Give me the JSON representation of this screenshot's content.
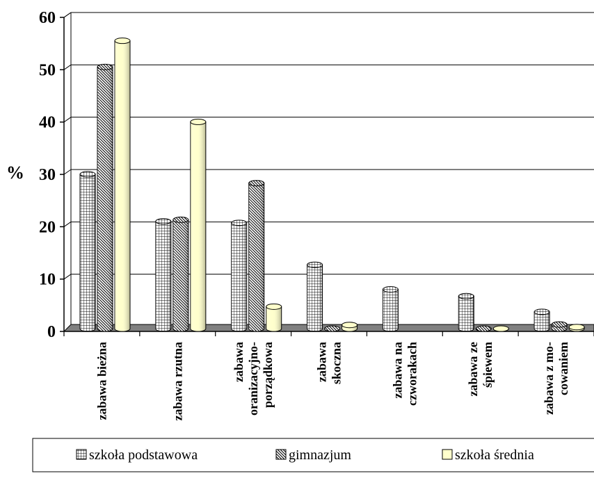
{
  "chart_data": {
    "type": "bar",
    "title": "",
    "ylabel": "%",
    "xlabel": "",
    "ylim": [
      0,
      60
    ],
    "yticks": [
      0,
      10,
      20,
      30,
      40,
      50,
      60
    ],
    "grid": true,
    "legend_position": "bottom",
    "categories": [
      [
        "zabawa bieżna"
      ],
      [
        "zabawa rzutna"
      ],
      [
        "zabawa",
        "oranizacyjno-",
        "porządkowa"
      ],
      [
        "zabawa",
        "skoczna"
      ],
      [
        "zabawa na",
        "czworakach"
      ],
      [
        "zabawa ze",
        "śpiewem"
      ],
      [
        "zabawa z mo-",
        "cowaniem"
      ]
    ],
    "series": [
      {
        "name": "szkoła podstawowa",
        "pattern": "grid",
        "color": "#ffffff",
        "values": [
          29.5,
          20.5,
          20.2,
          12.2,
          7.5,
          6.2,
          3.2
        ]
      },
      {
        "name": "gimnazjum",
        "pattern": "diagonal",
        "color": "#ffffff",
        "values": [
          50.0,
          20.8,
          27.8,
          0.0,
          null,
          0.0,
          0.8
        ]
      },
      {
        "name": "szkoła średnia",
        "pattern": "solid",
        "color": "#ffffcc",
        "values": [
          55.0,
          39.5,
          4.2,
          0.7,
          null,
          0.0,
          0.3
        ]
      }
    ]
  }
}
